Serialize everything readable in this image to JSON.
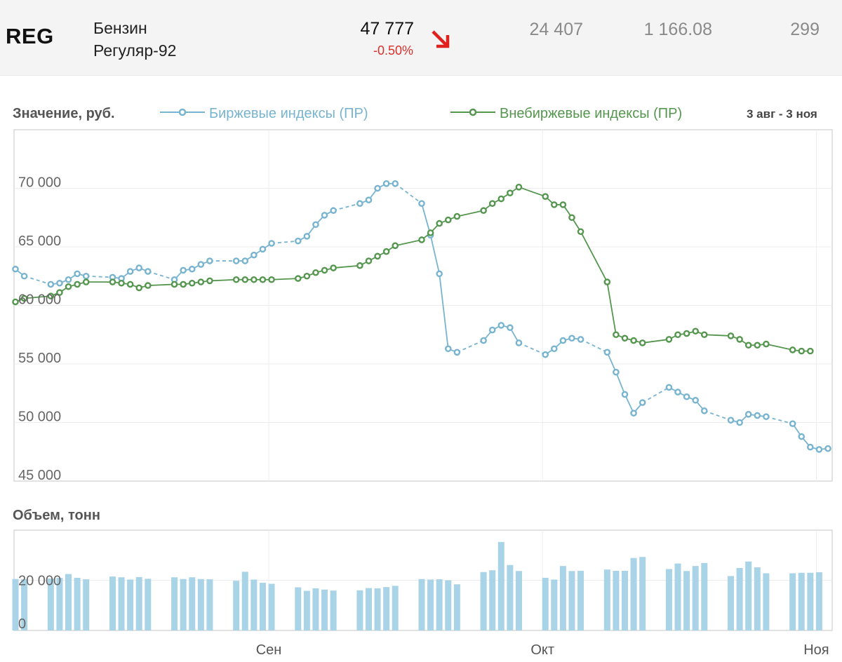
{
  "header": {
    "ticker": "REG",
    "name_line1": "Бензин",
    "name_line2": "Регуляр-92",
    "price": "47 777",
    "change": "-0.50%",
    "stat1": "24 407",
    "stat2": "1 166.08",
    "stat3": "299"
  },
  "colors": {
    "exchange": "#78b4cf",
    "otc": "#55964f",
    "volume": "#a9d3e6",
    "change_down": "#d9302b"
  },
  "icons": {
    "trend": "arrow-down-right-icon"
  },
  "chart_data": [
    {
      "type": "line",
      "ylabel": "Значение, руб.",
      "date_range": "3 авг - 3 ноя",
      "x_ticks": [
        "Сен",
        "Окт",
        "Ноя"
      ],
      "y_ticks": [
        "70 000",
        "65 000",
        "60 000",
        "55 000",
        "50 000",
        "45 000"
      ],
      "ylim": [
        45000,
        75000
      ],
      "legend_position": "top",
      "grid": true,
      "series": [
        {
          "name": "Биржевые индексы (ПР)",
          "style": "dashed-between-gaps",
          "x": [
            "2023-08-03",
            "2023-08-04",
            "2023-08-07",
            "2023-08-08",
            "2023-08-09",
            "2023-08-10",
            "2023-08-11",
            "2023-08-14",
            "2023-08-15",
            "2023-08-16",
            "2023-08-17",
            "2023-08-18",
            "2023-08-21",
            "2023-08-22",
            "2023-08-23",
            "2023-08-24",
            "2023-08-25",
            "2023-08-28",
            "2023-08-29",
            "2023-08-30",
            "2023-08-31",
            "2023-09-01",
            "2023-09-04",
            "2023-09-05",
            "2023-09-06",
            "2023-09-07",
            "2023-09-08",
            "2023-09-11",
            "2023-09-12",
            "2023-09-13",
            "2023-09-14",
            "2023-09-15",
            "2023-09-18",
            "2023-09-19",
            "2023-09-20",
            "2023-09-21",
            "2023-09-22",
            "2023-09-25",
            "2023-09-26",
            "2023-09-27",
            "2023-09-28",
            "2023-09-29",
            "2023-10-02",
            "2023-10-03",
            "2023-10-04",
            "2023-10-05",
            "2023-10-06",
            "2023-10-09",
            "2023-10-10",
            "2023-10-11",
            "2023-10-12",
            "2023-10-13",
            "2023-10-16",
            "2023-10-17",
            "2023-10-18",
            "2023-10-19",
            "2023-10-20",
            "2023-10-23",
            "2023-10-24",
            "2023-10-25",
            "2023-10-26",
            "2023-10-27",
            "2023-10-30",
            "2023-10-31",
            "2023-11-01",
            "2023-11-02",
            "2023-11-03"
          ],
          "y": [
            63100,
            62500,
            61800,
            61900,
            62200,
            62700,
            62500,
            62400,
            62300,
            62900,
            63200,
            62900,
            62200,
            63000,
            63100,
            63500,
            63800,
            63800,
            63800,
            64300,
            64800,
            65300,
            65500,
            65900,
            66900,
            67700,
            68100,
            68700,
            69000,
            70000,
            70400,
            70400,
            68700,
            66000,
            62700,
            56300,
            56000,
            57000,
            57900,
            58300,
            58100,
            56800,
            55800,
            56300,
            57000,
            57200,
            57100,
            56000,
            54300,
            52400,
            50800,
            51700,
            53000,
            52600,
            52200,
            51900,
            51000,
            50200,
            50000,
            50700,
            50600,
            50500,
            49900,
            48800,
            47900,
            47700,
            47777
          ]
        },
        {
          "name": "Внебиржевые индексы (ПР)",
          "style": "solid",
          "x": [
            "2023-08-03",
            "2023-08-04",
            "2023-08-07",
            "2023-08-08",
            "2023-08-09",
            "2023-08-10",
            "2023-08-11",
            "2023-08-14",
            "2023-08-15",
            "2023-08-16",
            "2023-08-17",
            "2023-08-18",
            "2023-08-21",
            "2023-08-22",
            "2023-08-23",
            "2023-08-24",
            "2023-08-25",
            "2023-08-28",
            "2023-08-29",
            "2023-08-30",
            "2023-08-31",
            "2023-09-01",
            "2023-09-04",
            "2023-09-05",
            "2023-09-06",
            "2023-09-07",
            "2023-09-08",
            "2023-09-11",
            "2023-09-12",
            "2023-09-13",
            "2023-09-14",
            "2023-09-15",
            "2023-09-18",
            "2023-09-19",
            "2023-09-20",
            "2023-09-21",
            "2023-09-22",
            "2023-09-25",
            "2023-09-26",
            "2023-09-27",
            "2023-09-28",
            "2023-09-29",
            "2023-10-02",
            "2023-10-03",
            "2023-10-04",
            "2023-10-05",
            "2023-10-06",
            "2023-10-09",
            "2023-10-10",
            "2023-10-11",
            "2023-10-12",
            "2023-10-13",
            "2023-10-16",
            "2023-10-17",
            "2023-10-18",
            "2023-10-19",
            "2023-10-20",
            "2023-10-23",
            "2023-10-24",
            "2023-10-25",
            "2023-10-26",
            "2023-10-27",
            "2023-10-30",
            "2023-10-31",
            "2023-11-01"
          ],
          "y": [
            60300,
            60600,
            60800,
            61100,
            61600,
            61800,
            62000,
            62000,
            61900,
            61800,
            61500,
            61700,
            61800,
            61800,
            61900,
            62000,
            62100,
            62200,
            62200,
            62200,
            62200,
            62200,
            62300,
            62500,
            62800,
            63000,
            63200,
            63400,
            63800,
            64200,
            64600,
            65100,
            65600,
            66200,
            67000,
            67300,
            67600,
            68100,
            68700,
            69100,
            69600,
            70100,
            69300,
            68600,
            68600,
            67500,
            66300,
            62000,
            57500,
            57200,
            57000,
            56800,
            57100,
            57500,
            57600,
            57800,
            57500,
            57400,
            57100,
            56600,
            56600,
            56700,
            56200,
            56100,
            56100
          ]
        }
      ]
    },
    {
      "type": "bar",
      "ylabel": "Объем, тонн",
      "y_ticks": [
        "20 000",
        "0"
      ],
      "ylim": [
        0,
        40000
      ],
      "values": [
        20500,
        20400,
        20700,
        21000,
        22500,
        21000,
        20400,
        21500,
        21200,
        20300,
        21300,
        20600,
        21200,
        20500,
        21200,
        20500,
        20400,
        19800,
        23400,
        20300,
        19000,
        18600,
        17200,
        15800,
        16800,
        16300,
        15900,
        16000,
        16900,
        16800,
        17300,
        17800,
        20500,
        20300,
        20400,
        20000,
        18400,
        23300,
        24000,
        35300,
        26100,
        23700,
        21000,
        20300,
        25700,
        23700,
        23800,
        24300,
        23800,
        23800,
        28900,
        29300,
        24500,
        26700,
        23700,
        25700,
        26900,
        21700,
        24900,
        27500,
        25200,
        22800,
        22800,
        23000,
        23000,
        23200
      ]
    }
  ]
}
